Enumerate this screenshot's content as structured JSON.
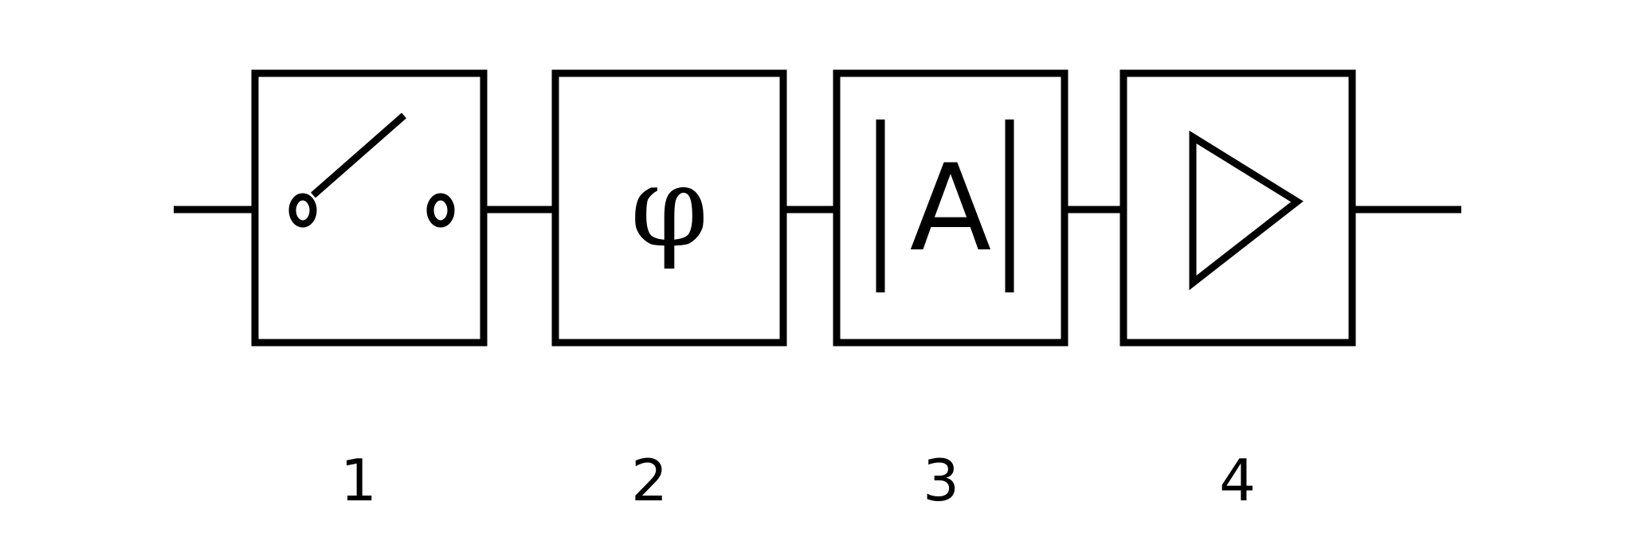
{
  "diagram": {
    "stroke_color": "#000000",
    "background": "#ffffff",
    "blocks": [
      {
        "number": "1",
        "symbol": "switch-icon"
      },
      {
        "number": "2",
        "symbol": "phi",
        "glyph": "φ"
      },
      {
        "number": "3",
        "symbol": "absolute-value",
        "glyph": "A"
      },
      {
        "number": "4",
        "symbol": "amplifier-triangle-icon"
      }
    ]
  }
}
